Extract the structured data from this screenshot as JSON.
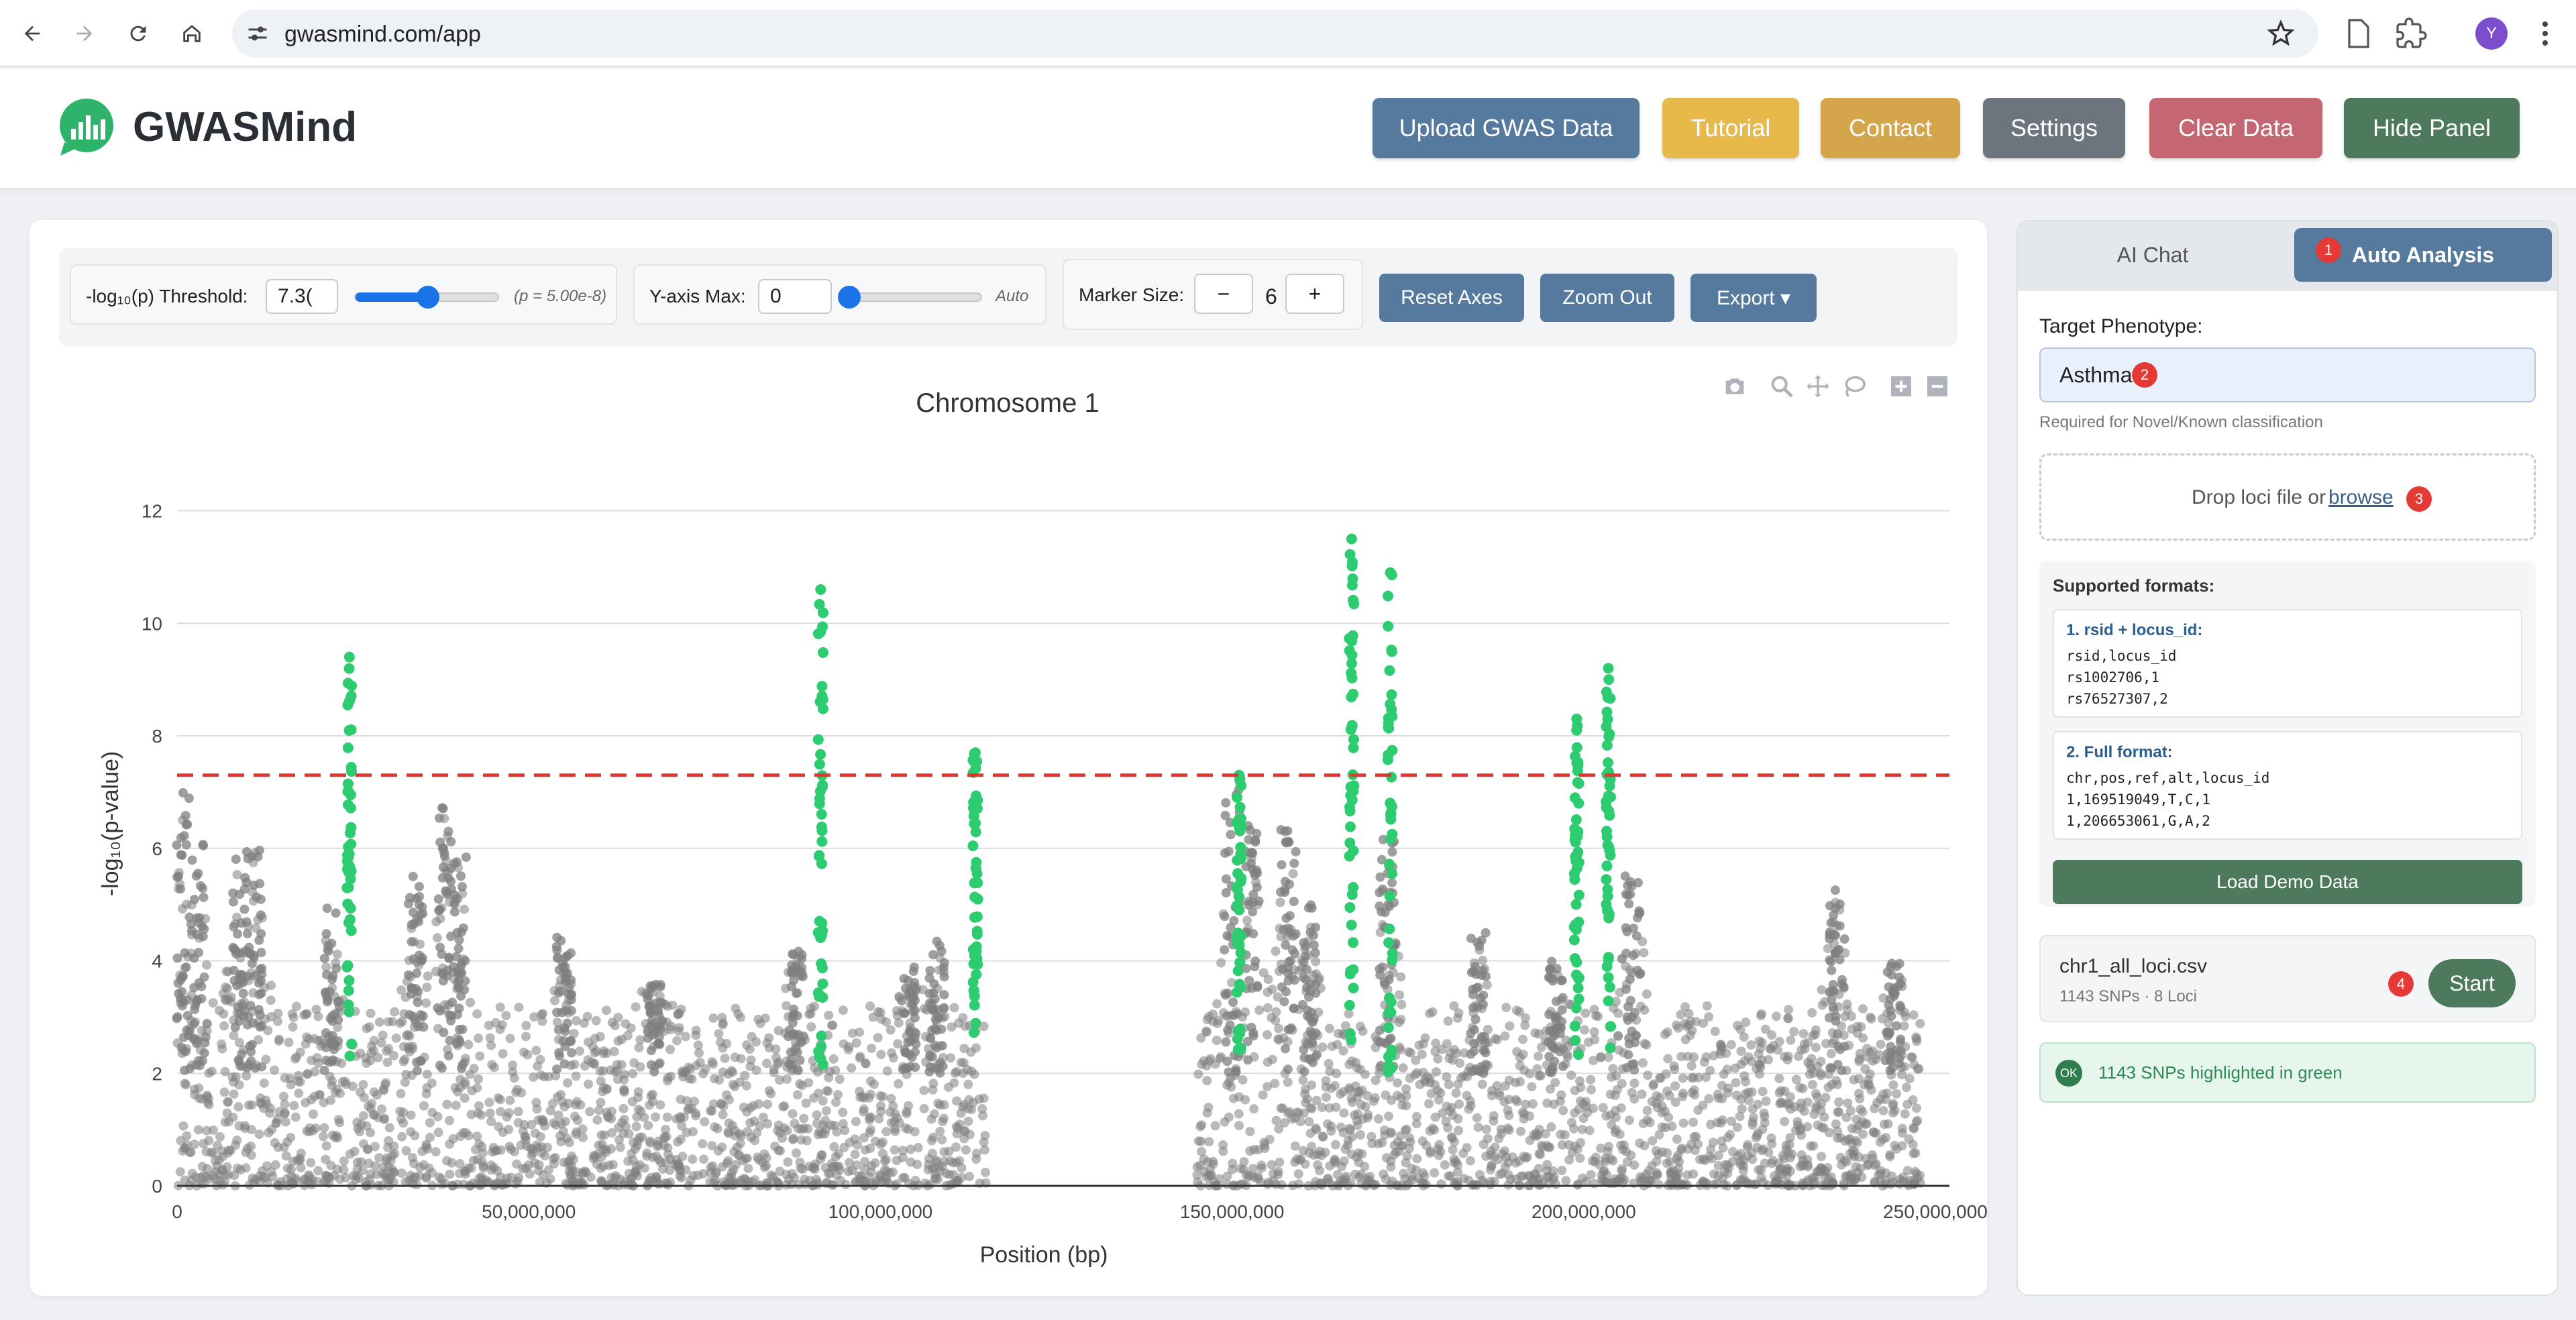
{
  "browser": {
    "url": "gwasmind.com/app",
    "avatar_letter": "Y"
  },
  "header": {
    "brand": "GWASMind",
    "buttons": {
      "upload": "Upload GWAS Data",
      "tutorial": "Tutorial",
      "contact": "Contact",
      "settings": "Settings",
      "clear": "Clear Data",
      "hide": "Hide Panel"
    },
    "colors": {
      "upload": "#557a9e",
      "tutorial": "#e6b94a",
      "contact": "#d4a54a",
      "settings": "#6c757d",
      "clear": "#c56673",
      "hide": "#4d7a5c"
    }
  },
  "controls": {
    "threshold_label": "-log₁₀(p) Threshold:",
    "threshold_value": "7.3(",
    "threshold_fraction": 0.5,
    "threshold_hint": "(p = 5.00e-8)",
    "ymax_label": "Y-axis Max:",
    "ymax_value": "0",
    "ymax_fraction": 0.0,
    "ymax_hint": "Auto",
    "marker_label": "Marker Size:",
    "marker_minus": "−",
    "marker_value": "6",
    "marker_plus": "+",
    "reset_axes": "Reset Axes",
    "zoom_out": "Zoom Out",
    "export": "Export ▾"
  },
  "chart_data": {
    "type": "scatter",
    "title": "Chromosome 1",
    "xlabel": "Position (bp)",
    "ylabel": "-log₁₀(p-value)",
    "xlim": [
      0,
      252000000
    ],
    "ylim": [
      0,
      12.4
    ],
    "x_ticks": [
      0,
      50000000,
      100000000,
      150000000,
      200000000,
      250000000
    ],
    "x_tick_labels": [
      "0",
      "50,000,000",
      "100,000,000",
      "150,000,000",
      "200,000,000",
      "250,000,000"
    ],
    "y_ticks": [
      0,
      2,
      4,
      6,
      8,
      10,
      12
    ],
    "y_tick_labels": [
      "0",
      "2",
      "4",
      "6",
      "8",
      "10",
      "12"
    ],
    "threshold": 7.3,
    "series": [
      {
        "name": "background SNPs",
        "color": "#7f7f7f"
      },
      {
        "name": "highlighted loci SNPs",
        "color": "#2ecc71"
      }
    ],
    "peaks_gray": [
      {
        "x": 1000000,
        "y": 7.1
      },
      {
        "x": 3000000,
        "y": 6.2
      },
      {
        "x": 9000000,
        "y": 6.0
      },
      {
        "x": 11000000,
        "y": 6.0
      },
      {
        "x": 22000000,
        "y": 5.0
      },
      {
        "x": 34000000,
        "y": 5.5
      },
      {
        "x": 38000000,
        "y": 7.0
      },
      {
        "x": 40000000,
        "y": 5.9
      },
      {
        "x": 55000000,
        "y": 4.5
      },
      {
        "x": 68000000,
        "y": 3.6
      },
      {
        "x": 88000000,
        "y": 4.2
      },
      {
        "x": 104000000,
        "y": 3.9
      },
      {
        "x": 108000000,
        "y": 4.4
      },
      {
        "x": 150000000,
        "y": 7.2
      },
      {
        "x": 153000000,
        "y": 6.4
      },
      {
        "x": 158000000,
        "y": 6.4
      },
      {
        "x": 161000000,
        "y": 5.0
      },
      {
        "x": 172000000,
        "y": 6.2
      },
      {
        "x": 185000000,
        "y": 4.5
      },
      {
        "x": 196000000,
        "y": 4.0
      },
      {
        "x": 207000000,
        "y": 5.6
      },
      {
        "x": 236000000,
        "y": 5.3
      },
      {
        "x": 244000000,
        "y": 4.0
      }
    ],
    "loci": [
      {
        "x": 24500000,
        "y_min": 2.1,
        "y_max": 9.4
      },
      {
        "x": 91500000,
        "y_min": 2.1,
        "y_max": 10.6
      },
      {
        "x": 113500000,
        "y_min": 2.3,
        "y_max": 7.7
      },
      {
        "x": 151000000,
        "y_min": 2.3,
        "y_max": 7.3
      },
      {
        "x": 167000000,
        "y_min": 2.3,
        "y_max": 11.5
      },
      {
        "x": 172500000,
        "y_min": 2.0,
        "y_max": 10.9
      },
      {
        "x": 199000000,
        "y_min": 2.2,
        "y_max": 8.3
      },
      {
        "x": 203500000,
        "y_min": 2.3,
        "y_max": 9.2
      }
    ],
    "gap": [
      115000000,
      145000000
    ]
  },
  "side": {
    "tab_chat": "AI Chat",
    "tab_auto": "Auto Analysis",
    "badge1": "1",
    "badge2": "2",
    "badge3": "3",
    "badge4": "4",
    "target_label": "Target Phenotype:",
    "phenotype_value": "Asthma",
    "phenotype_help": "Required for Novel/Known classification",
    "drop_text": "Drop loci file or",
    "browse": "browse",
    "formats_title": "Supported formats:",
    "fmt1_title": "1. rsid + locus_id:",
    "fmt1_lines": [
      "rsid,locus_id",
      "rs1002706,1",
      "rs76527307,2"
    ],
    "fmt2_title": "2. Full format:",
    "fmt2_lines": [
      "chr,pos,ref,alt,locus_id",
      "1,169519049,T,C,1",
      "1,206653061,G,A,2"
    ],
    "demo_button": "Load Demo Data",
    "file_name": "chr1_all_loci.csv",
    "file_meta": "1143 SNPs · 8 Loci",
    "start_button": "Start",
    "ok": "OK",
    "status_text": "1143 SNPs highlighted in green"
  }
}
